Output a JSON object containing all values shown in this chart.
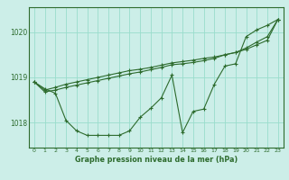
{
  "background_color": "#cceee8",
  "grid_color": "#99ddcc",
  "line_color": "#2d6b2d",
  "xlabel": "Graphe pression niveau de la mer (hPa)",
  "x_ticks": [
    0,
    1,
    2,
    3,
    4,
    5,
    6,
    7,
    8,
    9,
    10,
    11,
    12,
    13,
    14,
    15,
    16,
    17,
    18,
    19,
    20,
    21,
    22,
    23
  ],
  "y_ticks": [
    1018,
    1019,
    1020
  ],
  "ylim": [
    1017.45,
    1020.55
  ],
  "xlim": [
    -0.5,
    23.5
  ],
  "series": [
    [
      1018.9,
      1018.75,
      1018.65,
      1018.05,
      1017.82,
      1017.72,
      1017.72,
      1017.72,
      1017.72,
      1017.82,
      1018.12,
      1018.32,
      1018.55,
      1019.05,
      1017.78,
      1018.25,
      1018.3,
      1018.85,
      1019.25,
      1019.3,
      1019.9,
      1020.05,
      1020.15,
      1020.28
    ],
    [
      1018.9,
      1018.72,
      1018.78,
      1018.85,
      1018.9,
      1018.95,
      1019.0,
      1019.05,
      1019.1,
      1019.15,
      1019.18,
      1019.22,
      1019.27,
      1019.32,
      1019.35,
      1019.38,
      1019.42,
      1019.45,
      1019.5,
      1019.55,
      1019.62,
      1019.72,
      1019.82,
      1020.28
    ],
    [
      1018.9,
      1018.68,
      1018.72,
      1018.78,
      1018.83,
      1018.88,
      1018.93,
      1018.98,
      1019.03,
      1019.08,
      1019.12,
      1019.17,
      1019.22,
      1019.28,
      1019.3,
      1019.33,
      1019.37,
      1019.42,
      1019.5,
      1019.55,
      1019.65,
      1019.78,
      1019.9,
      1020.28
    ]
  ]
}
